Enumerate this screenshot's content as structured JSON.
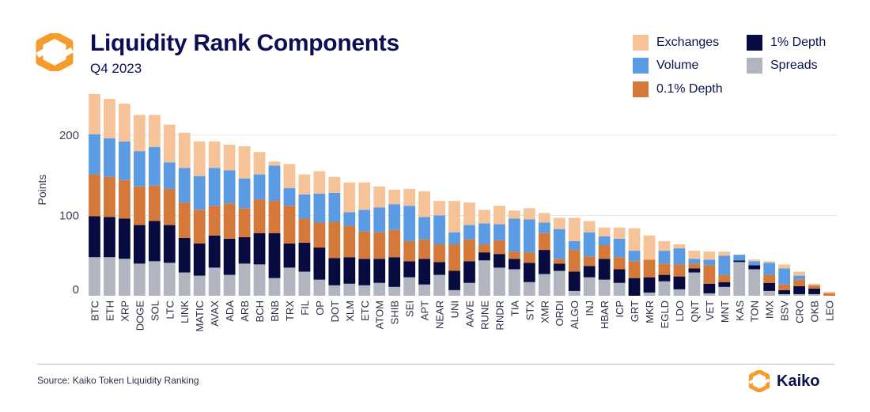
{
  "header": {
    "title": "Liquidity Rank Components",
    "subtitle": "Q4 2023"
  },
  "footer": {
    "source": "Source: Kaiko Token Liquidity Ranking",
    "brand": "Kaiko"
  },
  "colors": {
    "spreads": "#b0b5bf",
    "depth1": "#070b3f",
    "depth01": "#d5793a",
    "volume": "#5b9be3",
    "exchanges": "#f5c397",
    "brand_orange": "#f59c2a",
    "text": "#0b1250"
  },
  "chart_data": {
    "type": "bar",
    "stacked": true,
    "ylabel": "Points",
    "xlabel": "",
    "ylim": [
      0,
      250
    ],
    "yticks": [
      0,
      100,
      200
    ],
    "grid": true,
    "legend_position": "top-right",
    "categories": [
      "BTC",
      "ETH",
      "XRP",
      "DOGE",
      "SOL",
      "LTC",
      "LINK",
      "MATIC",
      "AVAX",
      "ADA",
      "ARB",
      "BCH",
      "BNB",
      "TRX",
      "FIL",
      "OP",
      "DOT",
      "XLM",
      "ETC",
      "ATOM",
      "SHIB",
      "SEI",
      "APT",
      "NEAR",
      "UNI",
      "AAVE",
      "RUNE",
      "RNDR",
      "TIA",
      "STX",
      "XMR",
      "ORDI",
      "ALGO",
      "INJ",
      "HBAR",
      "ICP",
      "GRT",
      "MKR",
      "EGLD",
      "LDO",
      "QNT",
      "VET",
      "MNT",
      "KAS",
      "TON",
      "IMX",
      "BSV",
      "CRO",
      "OKB",
      "LEO"
    ],
    "series": [
      {
        "name": "Spreads",
        "key": "spreads",
        "values": [
          48,
          48,
          46,
          40,
          43,
          41,
          29,
          25,
          35,
          26,
          40,
          39,
          22,
          35,
          30,
          20,
          13,
          15,
          13,
          16,
          11,
          23,
          14,
          26,
          7,
          16,
          44,
          35,
          33,
          17,
          27,
          31,
          6,
          23,
          20,
          16,
          0,
          4,
          18,
          8,
          29,
          3,
          11,
          42,
          33,
          6,
          2,
          2,
          2,
          0
        ]
      },
      {
        "name": "1% Depth",
        "key": "depth1",
        "values": [
          51,
          50,
          50,
          48,
          50,
          47,
          43,
          40,
          40,
          45,
          33,
          39,
          56,
          30,
          36,
          40,
          34,
          33,
          33,
          30,
          37,
          20,
          32,
          16,
          24,
          27,
          10,
          17,
          13,
          24,
          30,
          9,
          24,
          14,
          26,
          17,
          22,
          19,
          8,
          16,
          5,
          12,
          6,
          2,
          5,
          10,
          5,
          10,
          7,
          0
        ]
      },
      {
        "name": "0.1% Depth",
        "key": "depth01",
        "values": [
          52,
          50,
          48,
          48,
          44,
          45,
          44,
          42,
          37,
          44,
          36,
          42,
          40,
          47,
          30,
          31,
          45,
          39,
          34,
          33,
          34,
          25,
          24,
          22,
          33,
          27,
          10,
          17,
          9,
          13,
          21,
          6,
          27,
          12,
          17,
          15,
          21,
          22,
          14,
          15,
          6,
          23,
          9,
          0,
          0,
          10,
          7,
          8,
          4,
          3
        ]
      },
      {
        "name": "Volume",
        "key": "volume",
        "values": [
          50,
          48,
          48,
          44,
          48,
          33,
          43,
          42,
          47,
          41,
          37,
          31,
          44,
          22,
          30,
          36,
          36,
          17,
          27,
          31,
          32,
          44,
          28,
          36,
          15,
          18,
          26,
          20,
          41,
          41,
          13,
          37,
          11,
          30,
          11,
          23,
          13,
          0,
          16,
          20,
          6,
          7,
          24,
          7,
          5,
          15,
          20,
          5,
          0,
          0
        ]
      },
      {
        "name": "Exchanges",
        "key": "exchanges",
        "values": [
          50,
          49,
          47,
          45,
          40,
          47,
          44,
          43,
          33,
          32,
          40,
          28,
          5,
          30,
          25,
          28,
          20,
          37,
          34,
          26,
          18,
          21,
          32,
          18,
          39,
          28,
          17,
          23,
          10,
          14,
          12,
          14,
          29,
          14,
          11,
          14,
          28,
          30,
          12,
          5,
          10,
          10,
          5,
          0,
          2,
          2,
          5,
          5,
          2,
          2
        ]
      }
    ],
    "legend": [
      {
        "key": "exchanges",
        "label": "Exchanges"
      },
      {
        "key": "depth1",
        "label": "1% Depth"
      },
      {
        "key": "volume",
        "label": "Volume"
      },
      {
        "key": "spreads",
        "label": "Spreads"
      },
      {
        "key": "depth01",
        "label": "0.1% Depth"
      }
    ]
  }
}
